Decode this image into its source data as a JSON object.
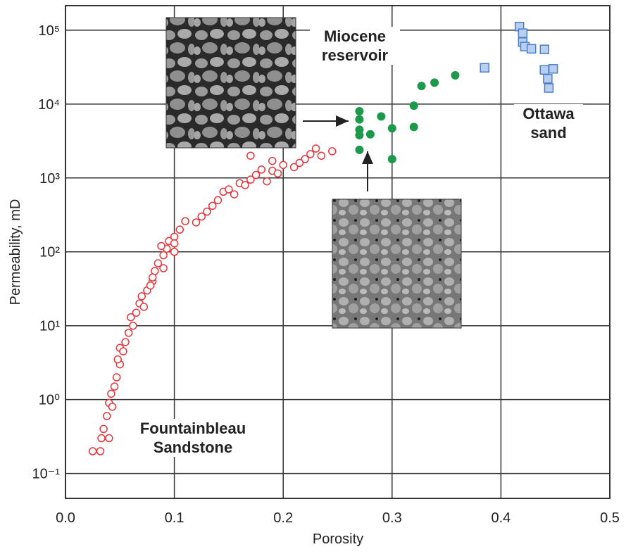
{
  "chart_data": {
    "type": "scatter",
    "x_label": "Porosity",
    "y_label": "Permeability, mD",
    "xlim": [
      0,
      0.5
    ],
    "ylim": [
      0.046,
      215000
    ],
    "log_y": true,
    "grid": true,
    "xticks": [
      {
        "value": 0,
        "label": "0.0"
      },
      0.1,
      0.2,
      0.3,
      0.4,
      0.5
    ],
    "yticks": [
      {
        "value": 0.1,
        "label": "10⁻¹"
      },
      {
        "value": 1,
        "label": "10⁰"
      },
      {
        "value": 10,
        "label": "10¹"
      },
      {
        "value": 100,
        "label": "10²"
      },
      {
        "value": 1000,
        "label": "10³"
      },
      {
        "value": 10000,
        "label": "10⁴"
      },
      {
        "value": 100000,
        "label": "10⁵"
      }
    ],
    "series": [
      {
        "name": "Fountainbleau Sandstone",
        "color": "#e8343a",
        "marker": "circle-open",
        "x": [
          0.025,
          0.032,
          0.033,
          0.035,
          0.038,
          0.04,
          0.042,
          0.045,
          0.047,
          0.05,
          0.05,
          0.055,
          0.058,
          0.06,
          0.065,
          0.068,
          0.07,
          0.075,
          0.08,
          0.082,
          0.085,
          0.09,
          0.093,
          0.095,
          0.1,
          0.105,
          0.11,
          0.12,
          0.13,
          0.14,
          0.145,
          0.15,
          0.155,
          0.16,
          0.17,
          0.175,
          0.18,
          0.19,
          0.2,
          0.21,
          0.22,
          0.23,
          0.235,
          0.245,
          0.17,
          0.19,
          0.04,
          0.043,
          0.048,
          0.053,
          0.062,
          0.072,
          0.078,
          0.088,
          0.1,
          0.125,
          0.135,
          0.165,
          0.185,
          0.195,
          0.215,
          0.225,
          0.1,
          0.09,
          0.08
        ],
        "values": [
          0.2,
          0.2,
          0.3,
          0.4,
          0.6,
          0.9,
          1.2,
          1.5,
          2,
          3,
          5,
          6,
          8,
          13,
          15,
          20,
          25,
          30,
          40,
          55,
          70,
          90,
          110,
          140,
          160,
          200,
          260,
          250,
          350,
          500,
          650,
          700,
          600,
          850,
          950,
          1100,
          1300,
          1250,
          1500,
          1400,
          1800,
          2500,
          2000,
          2300,
          2000,
          1700,
          0.3,
          0.8,
          3.5,
          4.5,
          10,
          18,
          35,
          120,
          130,
          300,
          420,
          800,
          900,
          1150,
          1600,
          2100,
          100,
          60,
          45
        ]
      },
      {
        "name": "Miocene reservoir",
        "color": "#1a9a4a",
        "marker": "circle",
        "x": [
          0.27,
          0.27,
          0.27,
          0.27,
          0.27,
          0.28,
          0.29,
          0.3,
          0.3,
          0.32,
          0.32,
          0.327,
          0.339,
          0.358
        ],
        "values": [
          8000,
          6200,
          4500,
          3800,
          2400,
          3900,
          6800,
          4700,
          1800,
          9500,
          4900,
          17600,
          19500,
          24500
        ]
      },
      {
        "name": "Ottawa sand",
        "color": "#4a7ec8",
        "marker": "square",
        "x": [
          0.385,
          0.417,
          0.42,
          0.42,
          0.422,
          0.428,
          0.44,
          0.44,
          0.448,
          0.443,
          0.444
        ],
        "values": [
          31000,
          112000,
          91000,
          69000,
          60000,
          56000,
          55000,
          29000,
          30000,
          22000,
          16500
        ]
      }
    ]
  }
}
